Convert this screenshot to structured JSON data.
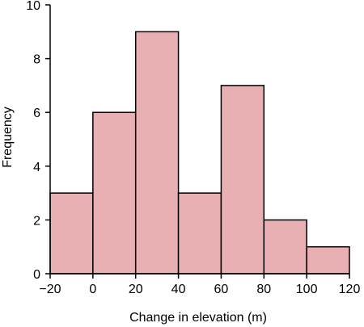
{
  "chart_data": {
    "type": "bar",
    "xlabel": "Change in elevation (m)",
    "ylabel": "Frequency",
    "bins": [
      {
        "start": -20,
        "end": 0,
        "value": 3
      },
      {
        "start": 0,
        "end": 20,
        "value": 6
      },
      {
        "start": 20,
        "end": 40,
        "value": 9
      },
      {
        "start": 40,
        "end": 60,
        "value": 3
      },
      {
        "start": 60,
        "end": 80,
        "value": 7
      },
      {
        "start": 80,
        "end": 100,
        "value": 2
      },
      {
        "start": 100,
        "end": 120,
        "value": 1
      }
    ],
    "xlim": [
      -20,
      120
    ],
    "ylim": [
      0,
      10
    ],
    "xticks": [
      -20,
      0,
      20,
      40,
      60,
      80,
      100,
      120
    ],
    "xtick_labels": [
      "−20",
      "0",
      "20",
      "40",
      "60",
      "80",
      "100",
      "120"
    ],
    "yticks": [
      0,
      2,
      4,
      6,
      8,
      10
    ],
    "ytick_labels": [
      "0",
      "2",
      "4",
      "6",
      "8",
      "10"
    ],
    "grid": false,
    "bar_color": "#e8b0b2",
    "edge_color": "#000000"
  }
}
